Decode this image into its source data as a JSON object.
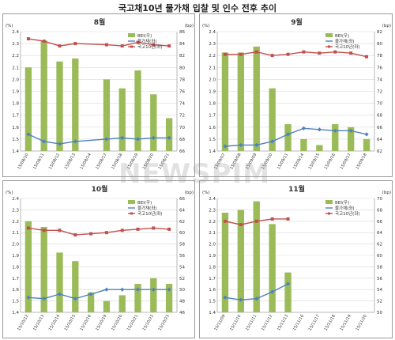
{
  "page_title": "국고채10년 물가채 입찰 및 인수 전후 추이",
  "watermark": "NEWSPIM",
  "colors": {
    "bar": "#9bbb59",
    "blue": "#4f81bd",
    "red": "#c0504d",
    "grid": "#d9d9d9",
    "axis": "#888888",
    "text": "#333333"
  },
  "chart_data": [
    {
      "type": "bar",
      "title": "8월",
      "left_unit": "(%)",
      "right_unit": "(bp)",
      "legend": [
        "BEI(우)",
        "물가채(좌)",
        "국고10년(좌)"
      ],
      "categories": [
        "15/08/10",
        "15/08/11",
        "15/08/12",
        "15/08/13",
        "15/08/14",
        "15/08/17",
        "15/08/18",
        "15/08/19",
        "15/08/20",
        "15/08/21"
      ],
      "left_ticks": [
        "1.4",
        "1.5",
        "1.6",
        "1.7",
        "1.8",
        "1.9",
        "2.0",
        "2.1",
        "2.2",
        "2.3",
        "2.4"
      ],
      "right_ticks": [
        "66",
        "68",
        "70",
        "72",
        "74",
        "76",
        "78",
        "80",
        "82",
        "84",
        "86"
      ],
      "ylim_left": [
        1.4,
        2.4
      ],
      "ylim_right": [
        66,
        86
      ],
      "bei": [
        80,
        84.5,
        81,
        81.5,
        null,
        78,
        76.5,
        79.5,
        75.5,
        71.5
      ],
      "linker": [
        1.54,
        1.48,
        1.46,
        1.48,
        null,
        1.5,
        1.51,
        1.5,
        1.51,
        1.51
      ],
      "treasury10": [
        2.34,
        2.32,
        2.28,
        2.3,
        null,
        2.29,
        2.28,
        2.31,
        2.29,
        2.28
      ]
    },
    {
      "type": "bar",
      "title": "9월",
      "left_unit": "(%)",
      "right_unit": "(bp)",
      "legend": [
        "BEI(우)",
        "물가채(좌)",
        "국고10년(좌)"
      ],
      "categories": [
        "15/09/07",
        "15/09/08",
        "15/09/09",
        "15/09/10",
        "15/09/11",
        "15/09/14",
        "15/09/15",
        "15/09/16",
        "15/09/17",
        "15/09/18"
      ],
      "left_ticks": [
        "1.4",
        "1.5",
        "1.6",
        "1.7",
        "1.8",
        "1.9",
        "2.0",
        "2.1",
        "2.2",
        "2.3",
        "2.4"
      ],
      "right_ticks": [
        "62",
        "64",
        "66",
        "68",
        "70",
        "72",
        "74",
        "76",
        "78",
        "80",
        "82"
      ],
      "ylim_left": [
        1.4,
        2.4
      ],
      "ylim_right": [
        62,
        82
      ],
      "bei": [
        78.5,
        78.5,
        79.5,
        72.5,
        66.5,
        64,
        63,
        66.5,
        66,
        64
      ],
      "linker": [
        1.44,
        1.45,
        1.45,
        1.48,
        1.54,
        1.59,
        1.58,
        1.57,
        1.57,
        1.54
      ],
      "treasury10": [
        2.21,
        2.21,
        2.23,
        2.2,
        2.21,
        2.23,
        2.22,
        2.23,
        2.22,
        2.19
      ]
    },
    {
      "type": "bar",
      "title": "10월",
      "left_unit": "(%)",
      "right_unit": "(bp)",
      "legend": [
        "BEI(우)",
        "물가채(좌)",
        "국고10년(좌)"
      ],
      "categories": [
        "15/10/12",
        "15/10/13",
        "15/10/14",
        "15/10/15",
        "15/10/16",
        "15/10/19",
        "15/10/20",
        "15/10/21",
        "15/10/22",
        "15/10/23"
      ],
      "left_ticks": [
        "1.4",
        "1.5",
        "1.6",
        "1.7",
        "1.8",
        "1.9",
        "2.0",
        "2.1",
        "2.2",
        "2.3",
        "2.4"
      ],
      "right_ticks": [
        "46",
        "48",
        "50",
        "52",
        "54",
        "56",
        "58",
        "60",
        "62",
        "64",
        "66"
      ],
      "ylim_left": [
        1.4,
        2.4
      ],
      "ylim_right": [
        46,
        66
      ],
      "bei": [
        62,
        61,
        56.5,
        55,
        49.5,
        48,
        49,
        51,
        52,
        51
      ],
      "linker": [
        1.53,
        1.52,
        1.56,
        1.52,
        1.56,
        1.6,
        1.6,
        1.6,
        1.6,
        1.6
      ],
      "treasury10": [
        2.14,
        2.12,
        2.12,
        2.08,
        2.09,
        2.1,
        2.12,
        2.13,
        2.14,
        2.13
      ]
    },
    {
      "type": "bar",
      "title": "11월",
      "left_unit": "(%)",
      "right_unit": "(bp)",
      "legend": [
        "BEI(우)",
        "물가채(좌)",
        "국고10년(좌)"
      ],
      "categories": [
        "15/11/09",
        "15/11/10",
        "15/11/11",
        "15/11/12",
        "15/11/13",
        "15/11/16",
        "15/11/17",
        "15/11/18",
        "15/11/19",
        "15/11/20"
      ],
      "left_ticks": [
        "1.4",
        "1.5",
        "1.6",
        "1.7",
        "1.8",
        "1.9",
        "2.0",
        "2.1",
        "2.2",
        "2.3",
        "2.4"
      ],
      "right_ticks": [
        "50",
        "52",
        "54",
        "56",
        "58",
        "60",
        "62",
        "64",
        "66",
        "68",
        "70"
      ],
      "ylim_left": [
        1.4,
        2.4
      ],
      "ylim_right": [
        50,
        70
      ],
      "bei": [
        67.5,
        68,
        69.5,
        65.5,
        57,
        null,
        null,
        null,
        null,
        null
      ],
      "linker": [
        1.53,
        1.51,
        1.52,
        1.58,
        1.65,
        null,
        null,
        null,
        null,
        null
      ],
      "treasury10": [
        2.2,
        2.17,
        2.2,
        2.22,
        2.22,
        null,
        null,
        null,
        null,
        null
      ]
    }
  ]
}
